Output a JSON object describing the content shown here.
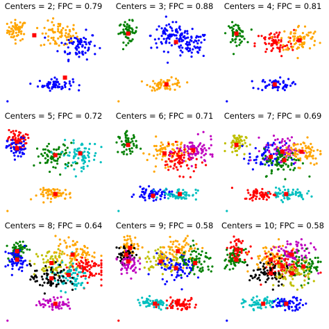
{
  "figure": {
    "colors": [
      "#0000ff",
      "#ffa500",
      "#008000",
      "#ff0000",
      "#00bfbf",
      "#bfbf00",
      "#bf00bf",
      "#000000",
      "#ff00ff",
      "#00ced1"
    ],
    "center_color": "#ff0000"
  },
  "chart_data": [
    {
      "type": "scatter",
      "title": "Centers = 2; FPC = 0.79",
      "centers": 2,
      "fpc": 0.79,
      "xlim": [
        0,
        1
      ],
      "ylim": [
        0,
        1
      ],
      "clusters": [
        {
          "color": "#ffa500",
          "region": "top-left",
          "center": [
            0.12,
            0.84
          ]
        },
        {
          "color": "#ffa500",
          "region": "top-middle",
          "center": [
            0.56,
            0.78
          ]
        },
        {
          "color": "#0000ff",
          "region": "right",
          "center": [
            0.76,
            0.66
          ]
        },
        {
          "color": "#0000ff",
          "region": "bottom",
          "center": [
            0.52,
            0.2
          ]
        }
      ],
      "cluster_centers": [
        [
          0.3,
          0.78
        ],
        [
          0.62,
          0.28
        ]
      ]
    },
    {
      "type": "scatter",
      "title": "Centers = 3; FPC = 0.88",
      "centers": 3,
      "fpc": 0.88,
      "xlim": [
        0,
        1
      ],
      "ylim": [
        0,
        1
      ],
      "clusters": [
        {
          "color": "#008000",
          "region": "top-left",
          "center": [
            0.12,
            0.82
          ]
        },
        {
          "color": "#0000ff",
          "region": "top-middle",
          "center": [
            0.56,
            0.78
          ]
        },
        {
          "color": "#0000ff",
          "region": "right",
          "center": [
            0.76,
            0.66
          ]
        },
        {
          "color": "#ffa500",
          "region": "bottom",
          "center": [
            0.52,
            0.2
          ]
        }
      ],
      "cluster_centers": [
        [
          0.12,
          0.8
        ],
        [
          0.62,
          0.7
        ],
        [
          0.52,
          0.2
        ]
      ]
    },
    {
      "type": "scatter",
      "title": "Centers = 4; FPC = 0.81",
      "centers": 4,
      "fpc": 0.81,
      "xlim": [
        0,
        1
      ],
      "ylim": [
        0,
        1
      ],
      "clusters": [
        {
          "color": "#008000",
          "region": "top-left",
          "center": [
            0.12,
            0.8
          ]
        },
        {
          "color": "#ff0000",
          "region": "top-middle",
          "center": [
            0.52,
            0.68
          ]
        },
        {
          "color": "#ffa500",
          "region": "right",
          "center": [
            0.78,
            0.74
          ]
        },
        {
          "color": "#0000ff",
          "region": "bottom",
          "center": [
            0.52,
            0.2
          ]
        }
      ],
      "cluster_centers": [
        [
          0.12,
          0.8
        ],
        [
          0.52,
          0.7
        ],
        [
          0.78,
          0.72
        ],
        [
          0.52,
          0.2
        ]
      ]
    },
    {
      "type": "scatter",
      "title": "Centers = 5; FPC = 0.72",
      "centers": 5,
      "fpc": 0.72,
      "xlim": [
        0,
        1
      ],
      "ylim": [
        0,
        1
      ],
      "clusters": [
        {
          "color": "#ff0000",
          "region": "top-left",
          "center": [
            0.12,
            0.84
          ]
        },
        {
          "color": "#0000ff",
          "region": "left",
          "center": [
            0.12,
            0.74
          ]
        },
        {
          "color": "#008000",
          "region": "middle",
          "center": [
            0.52,
            0.64
          ]
        },
        {
          "color": "#00bfbf",
          "region": "right",
          "center": [
            0.78,
            0.66
          ]
        },
        {
          "color": "#ffa500",
          "region": "bottom",
          "center": [
            0.52,
            0.2
          ]
        }
      ],
      "cluster_centers": [
        [
          0.12,
          0.82
        ],
        [
          0.12,
          0.74
        ],
        [
          0.52,
          0.66
        ],
        [
          0.78,
          0.68
        ],
        [
          0.52,
          0.2
        ]
      ]
    },
    {
      "type": "scatter",
      "title": "Centers = 6; FPC = 0.71",
      "centers": 6,
      "fpc": 0.71,
      "xlim": [
        0,
        1
      ],
      "ylim": [
        0,
        1
      ],
      "clusters": [
        {
          "color": "#008000",
          "region": "top-left",
          "center": [
            0.12,
            0.8
          ]
        },
        {
          "color": "#ffa500",
          "region": "middle",
          "center": [
            0.52,
            0.7
          ]
        },
        {
          "color": "#ff0000",
          "region": "center-right",
          "center": [
            0.66,
            0.6
          ]
        },
        {
          "color": "#bf00bf",
          "region": "right",
          "center": [
            0.82,
            0.7
          ]
        },
        {
          "color": "#0000ff",
          "region": "bottom-left",
          "center": [
            0.38,
            0.2
          ]
        },
        {
          "color": "#00bfbf",
          "region": "bottom-right",
          "center": [
            0.66,
            0.2
          ]
        }
      ],
      "cluster_centers": [
        [
          0.12,
          0.78
        ],
        [
          0.5,
          0.68
        ],
        [
          0.66,
          0.64
        ],
        [
          0.8,
          0.72
        ],
        [
          0.38,
          0.18
        ],
        [
          0.66,
          0.2
        ]
      ]
    },
    {
      "type": "scatter",
      "title": "Centers = 7; FPC = 0.69",
      "centers": 7,
      "fpc": 0.69,
      "xlim": [
        0,
        1
      ],
      "ylim": [
        0,
        1
      ],
      "clusters": [
        {
          "color": "#bfbf00",
          "region": "top-left",
          "center": [
            0.12,
            0.8
          ]
        },
        {
          "color": "#0000ff",
          "region": "middle",
          "center": [
            0.44,
            0.64
          ]
        },
        {
          "color": "#bf00bf",
          "region": "center",
          "center": [
            0.6,
            0.72
          ]
        },
        {
          "color": "#ffa500",
          "region": "right",
          "center": [
            0.82,
            0.7
          ]
        },
        {
          "color": "#008000",
          "region": "center-lower",
          "center": [
            0.6,
            0.58
          ]
        },
        {
          "color": "#ff0000",
          "region": "bottom-left",
          "center": [
            0.38,
            0.2
          ]
        },
        {
          "color": "#00bfbf",
          "region": "bottom-right",
          "center": [
            0.66,
            0.2
          ]
        }
      ],
      "cluster_centers": [
        [
          0.12,
          0.78
        ],
        [
          0.48,
          0.64
        ],
        [
          0.6,
          0.7
        ],
        [
          0.8,
          0.7
        ],
        [
          0.62,
          0.6
        ],
        [
          0.4,
          0.18
        ],
        [
          0.64,
          0.2
        ]
      ]
    },
    {
      "type": "scatter",
      "title": "Centers = 8; FPC = 0.64",
      "centers": 8,
      "fpc": 0.64,
      "xlim": [
        0,
        1
      ],
      "ylim": [
        0,
        1
      ],
      "clusters": [
        {
          "color": "#008000",
          "region": "top-left",
          "center": [
            0.12,
            0.84
          ]
        },
        {
          "color": "#0000ff",
          "region": "left",
          "center": [
            0.12,
            0.72
          ]
        },
        {
          "color": "#bfbf00",
          "region": "middle",
          "center": [
            0.5,
            0.68
          ]
        },
        {
          "color": "#ffa500",
          "region": "upper-right",
          "center": [
            0.72,
            0.8
          ]
        },
        {
          "color": "#ff0000",
          "region": "right",
          "center": [
            0.84,
            0.62
          ]
        },
        {
          "color": "#00bfbf",
          "region": "center-right",
          "center": [
            0.66,
            0.52
          ]
        },
        {
          "color": "#000000",
          "region": "center-lower",
          "center": [
            0.46,
            0.5
          ]
        },
        {
          "color": "#bf00bf",
          "region": "bottom",
          "center": [
            0.52,
            0.2
          ]
        }
      ],
      "cluster_centers": [
        [
          0.12,
          0.82
        ],
        [
          0.12,
          0.72
        ],
        [
          0.48,
          0.68
        ],
        [
          0.7,
          0.78
        ],
        [
          0.82,
          0.62
        ],
        [
          0.66,
          0.54
        ],
        [
          0.48,
          0.5
        ],
        [
          0.52,
          0.2
        ]
      ]
    },
    {
      "type": "scatter",
      "title": "Centers = 9; FPC = 0.58",
      "centers": 9,
      "fpc": 0.58,
      "xlim": [
        0,
        1
      ],
      "ylim": [
        0,
        1
      ],
      "clusters": [
        {
          "color": "#ffa500",
          "region": "top-left",
          "center": [
            0.14,
            0.88
          ]
        },
        {
          "color": "#000000",
          "region": "left",
          "center": [
            0.1,
            0.78
          ]
        },
        {
          "color": "#bf00bf",
          "region": "lower-left",
          "center": [
            0.12,
            0.68
          ]
        },
        {
          "color": "#bfbf00",
          "region": "middle",
          "center": [
            0.48,
            0.7
          ]
        },
        {
          "color": "#0000ff",
          "region": "center",
          "center": [
            0.62,
            0.62
          ]
        },
        {
          "color": "#ffa500",
          "region": "upper-right",
          "center": [
            0.66,
            0.84
          ]
        },
        {
          "color": "#008000",
          "region": "right",
          "center": [
            0.84,
            0.68
          ]
        },
        {
          "color": "#00bfbf",
          "region": "bottom-left",
          "center": [
            0.38,
            0.2
          ]
        },
        {
          "color": "#ff0000",
          "region": "bottom-right",
          "center": [
            0.66,
            0.2
          ]
        }
      ],
      "cluster_centers": [
        [
          0.14,
          0.86
        ],
        [
          0.1,
          0.78
        ],
        [
          0.12,
          0.7
        ],
        [
          0.46,
          0.7
        ],
        [
          0.62,
          0.62
        ],
        [
          0.64,
          0.82
        ],
        [
          0.82,
          0.68
        ],
        [
          0.4,
          0.2
        ],
        [
          0.64,
          0.2
        ]
      ]
    },
    {
      "type": "scatter",
      "title": "Centers = 10; FPC = 0.58",
      "centers": 10,
      "fpc": 0.58,
      "xlim": [
        0,
        1
      ],
      "ylim": [
        0,
        1
      ],
      "clusters": [
        {
          "color": "#ff0000",
          "region": "top-left",
          "center": [
            0.12,
            0.84
          ]
        },
        {
          "color": "#008000",
          "region": "left",
          "center": [
            0.1,
            0.72
          ]
        },
        {
          "color": "#ffa500",
          "region": "middle",
          "center": [
            0.48,
            0.74
          ]
        },
        {
          "color": "#bf00bf",
          "region": "upper-right",
          "center": [
            0.72,
            0.8
          ]
        },
        {
          "color": "#ff0000",
          "region": "center",
          "center": [
            0.6,
            0.64
          ]
        },
        {
          "color": "#008000",
          "region": "right",
          "center": [
            0.84,
            0.64
          ]
        },
        {
          "color": "#000000",
          "region": "center-left",
          "center": [
            0.46,
            0.56
          ]
        },
        {
          "color": "#bfbf00",
          "region": "center-right",
          "center": [
            0.7,
            0.56
          ]
        },
        {
          "color": "#00bfbf",
          "region": "bottom-left",
          "center": [
            0.38,
            0.2
          ]
        },
        {
          "color": "#0000ff",
          "region": "bottom-right",
          "center": [
            0.66,
            0.2
          ]
        }
      ],
      "cluster_centers": [
        [
          0.12,
          0.84
        ],
        [
          0.12,
          0.72
        ],
        [
          0.48,
          0.72
        ],
        [
          0.7,
          0.78
        ],
        [
          0.6,
          0.64
        ],
        [
          0.82,
          0.64
        ],
        [
          0.48,
          0.56
        ],
        [
          0.7,
          0.56
        ],
        [
          0.4,
          0.2
        ],
        [
          0.64,
          0.2
        ]
      ]
    }
  ]
}
